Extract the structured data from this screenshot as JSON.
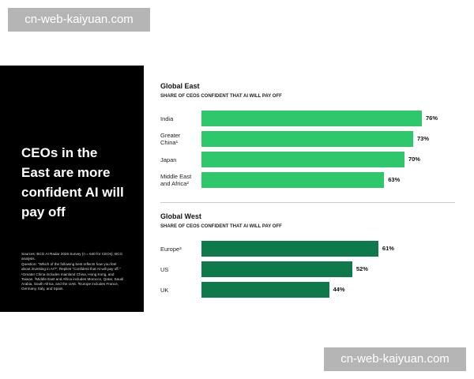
{
  "watermark": "cn-web-kaiyuan.com",
  "panel": {
    "headline": "CEOs in the East are more confident AI will pay off",
    "notes": [
      "Sources: BCG AI Radar 2026 Survey (n = 640 for CEOs); BCG analysis.",
      "Question: \"Which of the following best reflects how you feel about investing in AI?\"; Replies \"Confident that AI will pay off.\"",
      "¹Greater China includes mainland China, Hong Kong, and Taiwan. ²Middle East and Africa includes Morocco, Qatar, Saudi Arabia, South Africa, and the UAE. ³Europe includes France, Germany, Italy, and Spain."
    ]
  },
  "chart_data": [
    {
      "type": "bar",
      "orientation": "horizontal",
      "title": "Global East",
      "subtitle": "SHARE OF CEOS CONFIDENT THAT AI WILL PAY OFF",
      "categories": [
        "India",
        "Greater China¹",
        "Japan",
        "Middle East and Africa²"
      ],
      "values": [
        76,
        73,
        70,
        63
      ],
      "value_labels": [
        "76%",
        "73%",
        "70%",
        "63%"
      ],
      "color": "#2ec76b"
    },
    {
      "type": "bar",
      "orientation": "horizontal",
      "title": "Global West",
      "subtitle": "SHARE OF CEOS CONFIDENT THAT AI WILL PAY OFF",
      "categories": [
        "Europe³",
        "US",
        "UK"
      ],
      "values": [
        61,
        52,
        44
      ],
      "value_labels": [
        "61%",
        "52%",
        "44%"
      ],
      "color": "#0e7a4b"
    }
  ]
}
